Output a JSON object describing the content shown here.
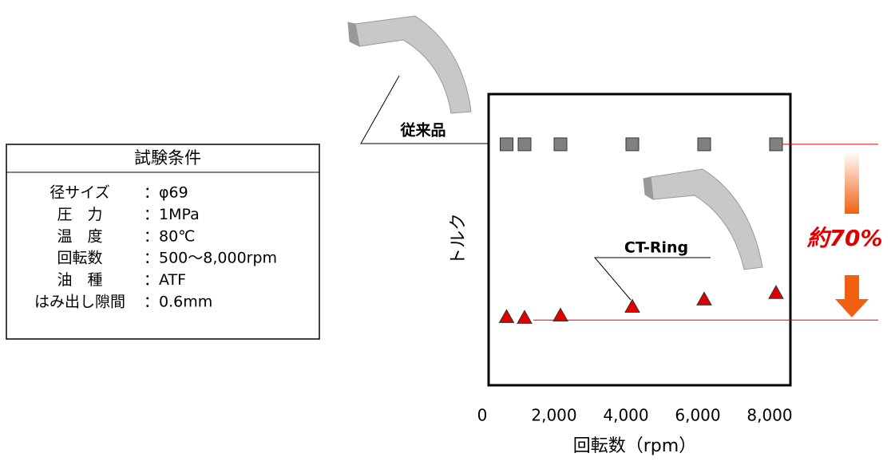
{
  "chart_data": {
    "type": "scatter",
    "x_label": "回転数（rpm）",
    "y_label": "トルク",
    "xlim": [
      0,
      8400
    ],
    "ylim": [
      4,
      120
    ],
    "xticks": [
      0,
      {
        "value": 2000,
        "label": "2,000"
      },
      {
        "value": 4000,
        "label": "4,000"
      },
      {
        "value": 6000,
        "label": "6,000"
      },
      {
        "value": 8000,
        "label": "8,000"
      }
    ],
    "x": [
      500,
      1000,
      2000,
      4000,
      6000,
      8000
    ],
    "series": [
      {
        "name": "従来品",
        "marker": "square",
        "color": "#808080",
        "values": [
          100,
          100,
          100,
          100,
          100,
          100
        ]
      },
      {
        "name": "CT-Ring",
        "marker": "triangle",
        "color": "#e00000",
        "values": [
          31.2,
          30.9,
          31.8,
          35.3,
          38.2,
          40.8
        ]
      }
    ],
    "reference_lines": [
      100,
      30
    ],
    "annotation": "約70%"
  },
  "table": {
    "title": "試験条件",
    "rows": [
      [
        "径サイズ",
        "：φ69"
      ],
      [
        "圧　力",
        "：1MPa"
      ],
      [
        "温　度",
        "：80℃"
      ],
      [
        "回転数",
        "：500～8,000rpm"
      ],
      [
        "油　種",
        "：ATF"
      ],
      [
        "はみ出し隙間",
        "：0.6mm"
      ]
    ]
  }
}
